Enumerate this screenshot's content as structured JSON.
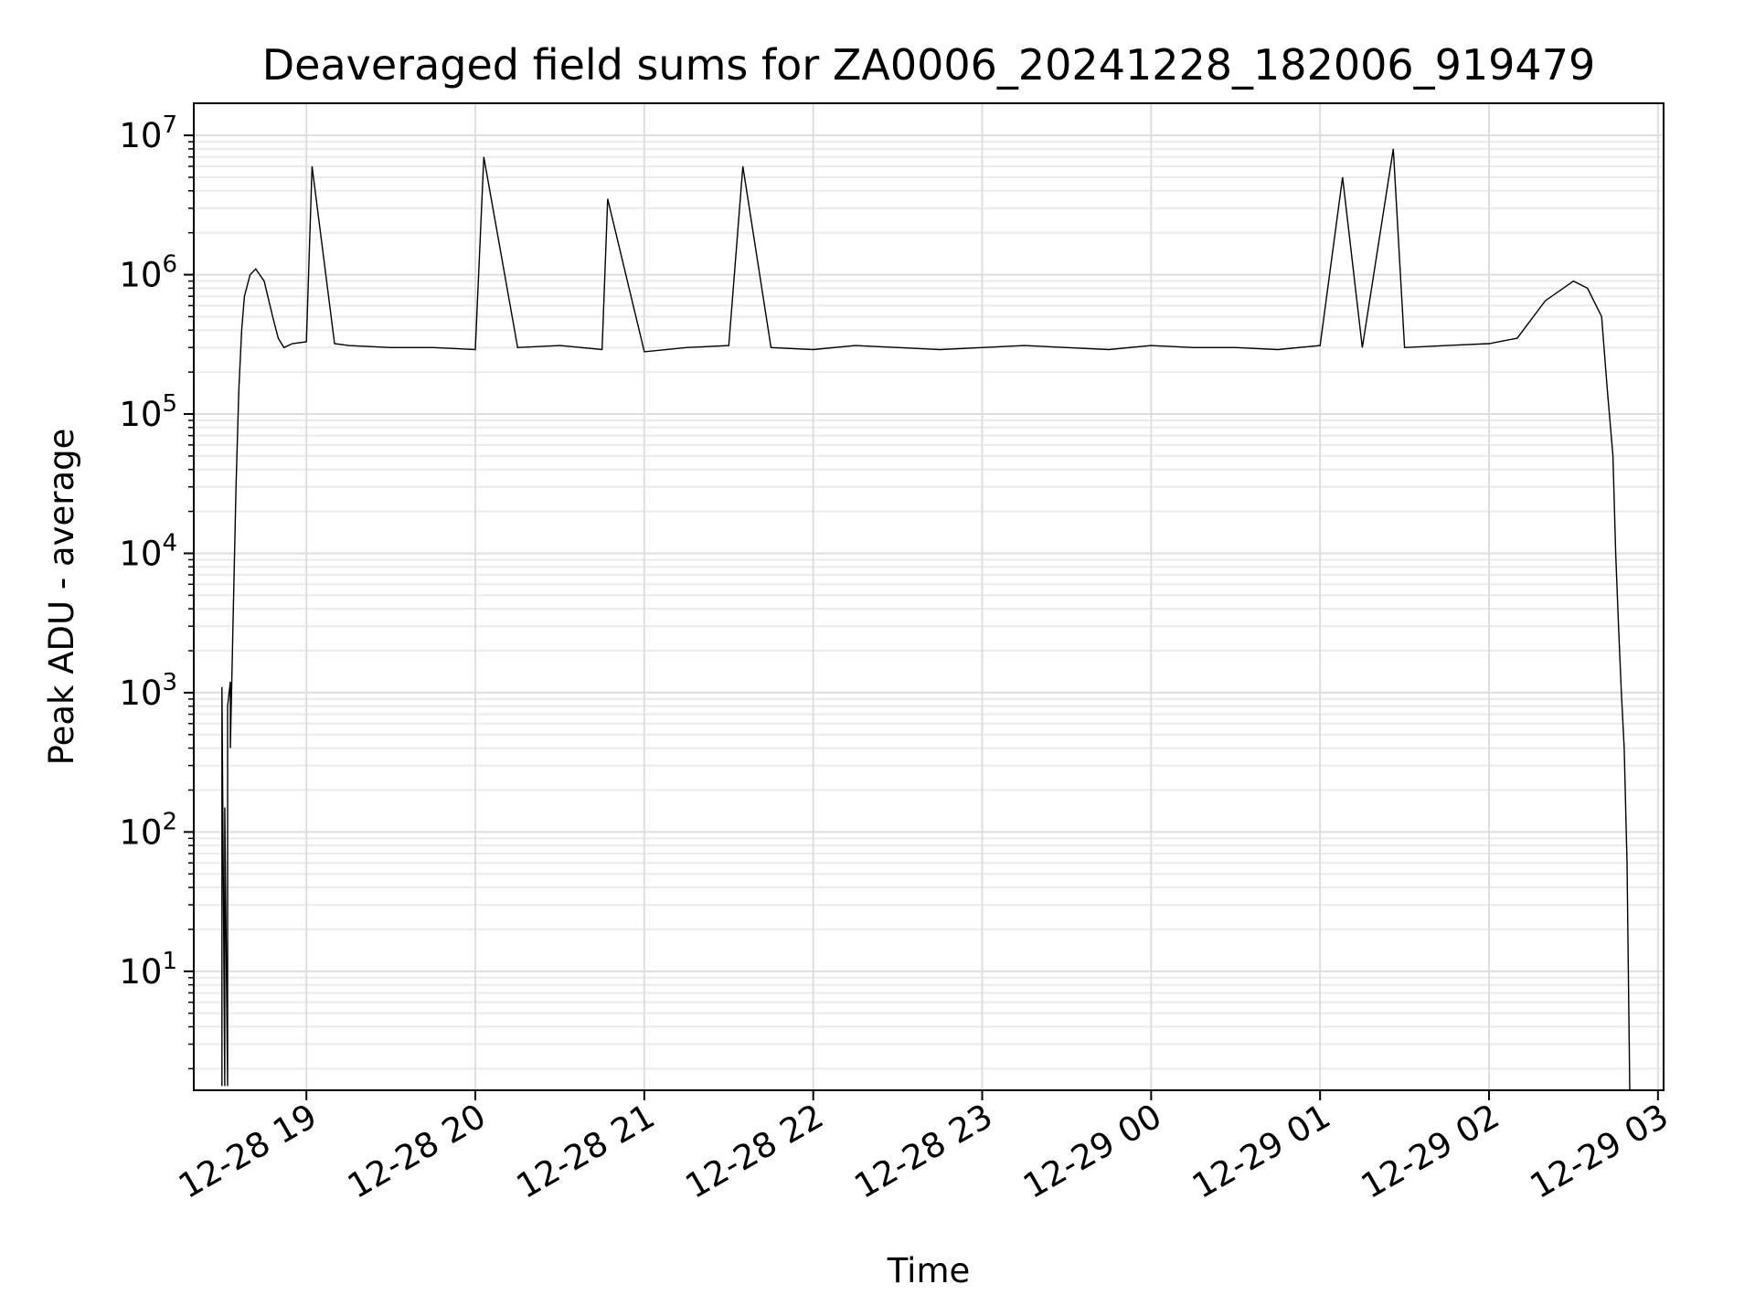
{
  "chart_data": {
    "type": "line",
    "title": "Deaveraged field sums for ZA0006_20241228_182006_919479",
    "xlabel": "Time",
    "ylabel": "Peak ADU - average",
    "x_scale": "time",
    "y_scale": "log",
    "xlim": [
      "2024-12-28 18:20",
      "2024-12-29 03:02"
    ],
    "ylim": [
      1.4,
      17000000
    ],
    "grid": "major and minor, light gray",
    "line_color": "#000000",
    "x_ticks": [
      {
        "value": "2024-12-28 19:00",
        "label": "12-28 19"
      },
      {
        "value": "2024-12-28 20:00",
        "label": "12-28 20"
      },
      {
        "value": "2024-12-28 21:00",
        "label": "12-28 21"
      },
      {
        "value": "2024-12-28 22:00",
        "label": "12-28 22"
      },
      {
        "value": "2024-12-28 23:00",
        "label": "12-28 23"
      },
      {
        "value": "2024-12-29 00:00",
        "label": "12-29 00"
      },
      {
        "value": "2024-12-29 01:00",
        "label": "12-29 01"
      },
      {
        "value": "2024-12-29 02:00",
        "label": "12-29 02"
      },
      {
        "value": "2024-12-29 03:00",
        "label": "12-29 03"
      }
    ],
    "y_ticks": [
      {
        "value": 10,
        "base": "10",
        "exp": "1"
      },
      {
        "value": 100,
        "base": "10",
        "exp": "2"
      },
      {
        "value": 1000,
        "base": "10",
        "exp": "3"
      },
      {
        "value": 10000,
        "base": "10",
        "exp": "4"
      },
      {
        "value": 100000,
        "base": "10",
        "exp": "5"
      },
      {
        "value": 1000000,
        "base": "10",
        "exp": "6"
      },
      {
        "value": 10000000,
        "base": "10",
        "exp": "7"
      }
    ],
    "series": [
      {
        "x": [
          "2024-12-28 18:30",
          "2024-12-28 18:30",
          "2024-12-28 18:31",
          "2024-12-28 18:31",
          "2024-12-28 18:32",
          "2024-12-28 18:32",
          "2024-12-28 18:33",
          "2024-12-28 18:33",
          "2024-12-28 18:34",
          "2024-12-28 18:35",
          "2024-12-28 18:36",
          "2024-12-28 18:37",
          "2024-12-28 18:38",
          "2024-12-28 18:40",
          "2024-12-28 18:42",
          "2024-12-28 18:45",
          "2024-12-28 18:48",
          "2024-12-28 18:50",
          "2024-12-28 18:52",
          "2024-12-28 18:55",
          "2024-12-28 19:00",
          "2024-12-28 19:02",
          "2024-12-28 19:10",
          "2024-12-28 19:15",
          "2024-12-28 19:30",
          "2024-12-28 19:45",
          "2024-12-28 20:00",
          "2024-12-28 20:03",
          "2024-12-28 20:15",
          "2024-12-28 20:30",
          "2024-12-28 20:45",
          "2024-12-28 20:47",
          "2024-12-28 21:00",
          "2024-12-28 21:15",
          "2024-12-28 21:30",
          "2024-12-28 21:35",
          "2024-12-28 21:45",
          "2024-12-28 22:00",
          "2024-12-28 22:15",
          "2024-12-28 22:30",
          "2024-12-28 22:45",
          "2024-12-28 23:00",
          "2024-12-28 23:15",
          "2024-12-28 23:30",
          "2024-12-28 23:45",
          "2024-12-29 00:00",
          "2024-12-29 00:15",
          "2024-12-29 00:30",
          "2024-12-29 00:45",
          "2024-12-29 01:00",
          "2024-12-29 01:08",
          "2024-12-29 01:15",
          "2024-12-29 01:26",
          "2024-12-29 01:30",
          "2024-12-29 01:45",
          "2024-12-29 02:00",
          "2024-12-29 02:10",
          "2024-12-29 02:20",
          "2024-12-29 02:30",
          "2024-12-29 02:35",
          "2024-12-29 02:40",
          "2024-12-29 02:42",
          "2024-12-29 02:44",
          "2024-12-29 02:45",
          "2024-12-29 02:46",
          "2024-12-29 02:47",
          "2024-12-29 02:48",
          "2024-12-29 02:49",
          "2024-12-29 02:50"
        ],
        "y": [
          1.5,
          1100,
          1.5,
          150,
          1.5,
          800,
          1200,
          400,
          3500,
          30000,
          150000,
          400000,
          700000,
          1000000,
          1100000,
          900000,
          500000,
          350000,
          300000,
          320000,
          330000,
          6000000,
          320000,
          310000,
          300000,
          300000,
          290000,
          7000000,
          300000,
          310000,
          290000,
          3500000,
          280000,
          300000,
          310000,
          6000000,
          300000,
          290000,
          310000,
          300000,
          290000,
          300000,
          310000,
          300000,
          290000,
          310000,
          300000,
          300000,
          290000,
          310000,
          5000000,
          300000,
          8000000,
          300000,
          310000,
          320000,
          350000,
          650000,
          900000,
          800000,
          500000,
          150000,
          50000,
          10000,
          3000,
          1000,
          400,
          60,
          1.4
        ]
      }
    ]
  }
}
